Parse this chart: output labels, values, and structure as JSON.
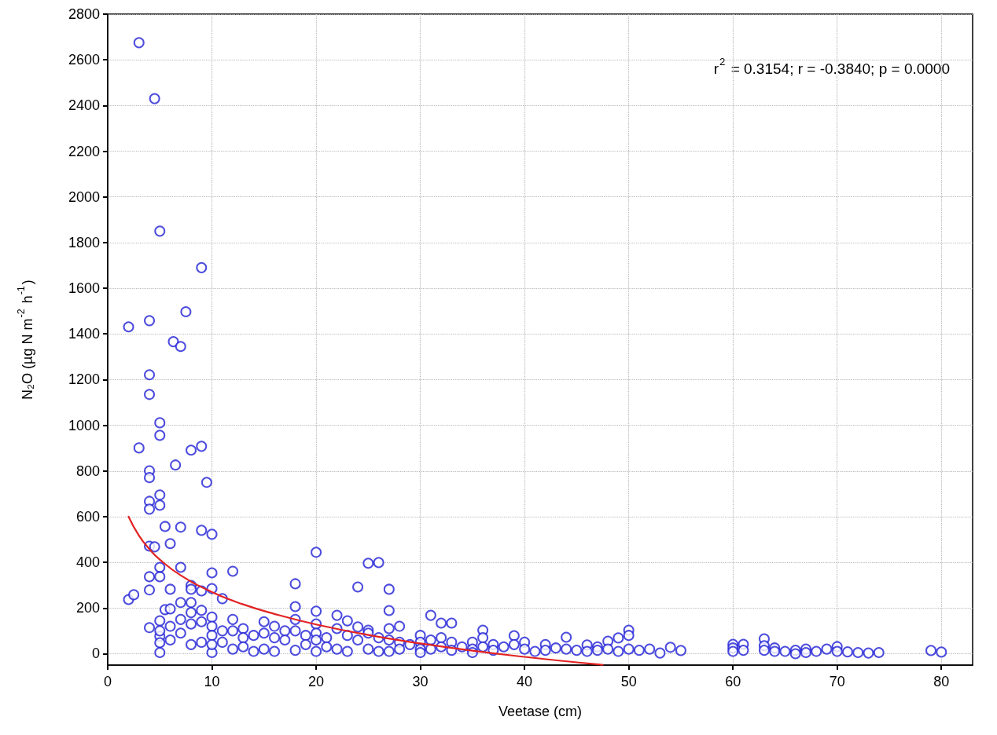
{
  "chart_data": {
    "type": "scatter",
    "xlabel": "Veetase (cm)",
    "ylabel": "N₂O (µg N m$^{-2}$ h$^{-1}$)",
    "annotations": [
      "r$^{2}$ = 0.3154; r = -0.3840; p = 0.0000"
    ],
    "xlim": [
      0,
      83
    ],
    "xticks": [
      0,
      10,
      20,
      30,
      40,
      50,
      60,
      70,
      80
    ],
    "ylim": [
      -50,
      2800
    ],
    "yticks": [
      0,
      200,
      400,
      600,
      800,
      1000,
      1200,
      1400,
      1600,
      1800,
      2000,
      2200,
      2400,
      2600,
      2800
    ],
    "grid": true,
    "series": [
      {
        "color": "#1f1fd6",
        "marker": "circle",
        "x": [
          3,
          4.5,
          5,
          9,
          7.5,
          4,
          2,
          6.3,
          7,
          4,
          4,
          5,
          5,
          3,
          8,
          9,
          6.5,
          4,
          4,
          9.5,
          5,
          4,
          5,
          4,
          5.5,
          7,
          9,
          10,
          4,
          4.5,
          6,
          5,
          7,
          4,
          5,
          10,
          12,
          20,
          2,
          2.5,
          4,
          6,
          8,
          8,
          9,
          10,
          11,
          7,
          8,
          18,
          18,
          20,
          4,
          5.5,
          6,
          5,
          5,
          5,
          5,
          10,
          25,
          26,
          24,
          27,
          27,
          22,
          23,
          24,
          25,
          28,
          31,
          32,
          33,
          36,
          39,
          44,
          49,
          50,
          48,
          46,
          60,
          61,
          63,
          54,
          55,
          53,
          70,
          79,
          80,
          5,
          6,
          6,
          7,
          7,
          8,
          8,
          8,
          9,
          9,
          9,
          10,
          10,
          10,
          10,
          11,
          11,
          12,
          12,
          12,
          13,
          13,
          13,
          14,
          14,
          15,
          15,
          15,
          16,
          16,
          16,
          17,
          17,
          18,
          18,
          18,
          19,
          19,
          20,
          20,
          20,
          20,
          21,
          21,
          22,
          22,
          23,
          23,
          24,
          25,
          25,
          26,
          26,
          27,
          27,
          27,
          28,
          28,
          29,
          30,
          30,
          30,
          30,
          31,
          31,
          32,
          32,
          33,
          33,
          34,
          35,
          35,
          35,
          36,
          36,
          37,
          37,
          38,
          39,
          40,
          40,
          41,
          42,
          42,
          43,
          44,
          45,
          46,
          47,
          47,
          48,
          49,
          50,
          50,
          51,
          52,
          60,
          60,
          61,
          63,
          63,
          64,
          64,
          65,
          66,
          66,
          67,
          67,
          68,
          69,
          70,
          71,
          72,
          73,
          74
        ],
        "values": [
          2675,
          2430,
          1850,
          1690,
          1497,
          1458,
          1431,
          1366,
          1345,
          1221,
          1135,
          1011,
          956,
          901,
          891,
          908,
          826,
          801,
          771,
          750,
          695,
          667,
          650,
          633,
          557,
          554,
          540,
          523,
          471,
          468,
          482,
          378,
          378,
          337,
          337,
          354,
          361,
          444,
          237,
          258,
          279,
          282,
          299,
          282,
          275,
          285,
          241,
          224,
          224,
          306,
          206,
          186,
          114,
          193,
          196,
          144,
          76,
          48,
          5,
          5,
          396,
          399,
          292,
          282,
          189,
          168,
          144,
          117,
          103,
          120,
          168,
          134,
          134,
          103,
          79,
          72,
          69,
          103,
          55,
          38,
          41,
          41,
          65,
          28,
          14,
          3,
          31,
          14,
          7,
          100,
          120,
          60,
          90,
          150,
          180,
          130,
          40,
          190,
          140,
          50,
          160,
          120,
          80,
          40,
          100,
          50,
          150,
          100,
          20,
          110,
          70,
          30,
          80,
          10,
          140,
          90,
          20,
          120,
          70,
          10,
          100,
          60,
          150,
          100,
          15,
          80,
          40,
          130,
          90,
          60,
          10,
          70,
          30,
          110,
          20,
          80,
          10,
          60,
          90,
          20,
          70,
          10,
          110,
          60,
          10,
          50,
          20,
          40,
          80,
          50,
          20,
          5,
          60,
          20,
          70,
          30,
          50,
          15,
          30,
          50,
          20,
          5,
          70,
          30,
          40,
          15,
          30,
          40,
          50,
          20,
          10,
          40,
          15,
          25,
          20,
          15,
          10,
          30,
          15,
          20,
          10,
          80,
          20,
          15,
          20,
          25,
          10,
          15,
          35,
          15,
          25,
          10,
          10,
          15,
          0,
          20,
          5,
          10,
          20,
          10,
          8,
          5,
          3,
          5
        ]
      },
      {
        "type": "line",
        "color": "#e32222",
        "marker": "none",
        "x": [
          2,
          3,
          4,
          5,
          7,
          10,
          13,
          16,
          20,
          25,
          30,
          35,
          40,
          45,
          47.5
        ],
        "values": [
          600,
          517,
          458,
          412,
          343,
          270,
          216,
          174,
          128,
          82,
          45,
          13,
          -14,
          -38,
          -49
        ]
      }
    ]
  }
}
